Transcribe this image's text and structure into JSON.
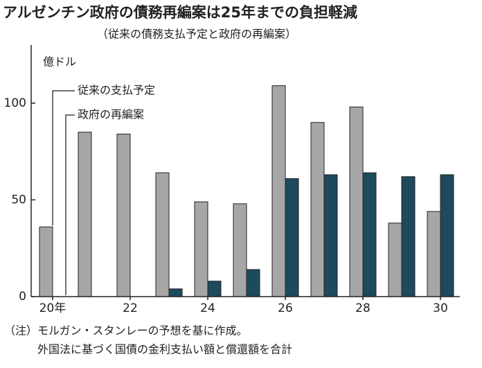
{
  "chart_data": {
    "type": "bar",
    "title": "アルゼンチン政府の債務再編案は25年までの負担軽減",
    "subtitle": "（従来の債務支払予定と政府の再編案）",
    "y_unit": "億ドル",
    "categories": [
      "20年",
      null,
      "22",
      null,
      "24",
      null,
      "26",
      null,
      "28",
      null,
      "30"
    ],
    "series": [
      {
        "name": "従来の支払予定",
        "color": "#a6a6a6",
        "values": [
          36,
          85,
          84,
          64,
          49,
          48,
          109,
          90,
          98,
          38,
          44
        ]
      },
      {
        "name": "政府の再編案",
        "color": "#1d4a5c",
        "values": [
          null,
          null,
          null,
          4,
          8,
          14,
          61,
          63,
          64,
          62,
          63
        ]
      }
    ],
    "ylim": [
      0,
      130
    ],
    "yticks": [
      0,
      50,
      100
    ],
    "notes": [
      "（注）モルガン・スタンレーの予想を基に作成。",
      "外国法に基づく国債の金利支払い額と償還額を合計"
    ]
  }
}
